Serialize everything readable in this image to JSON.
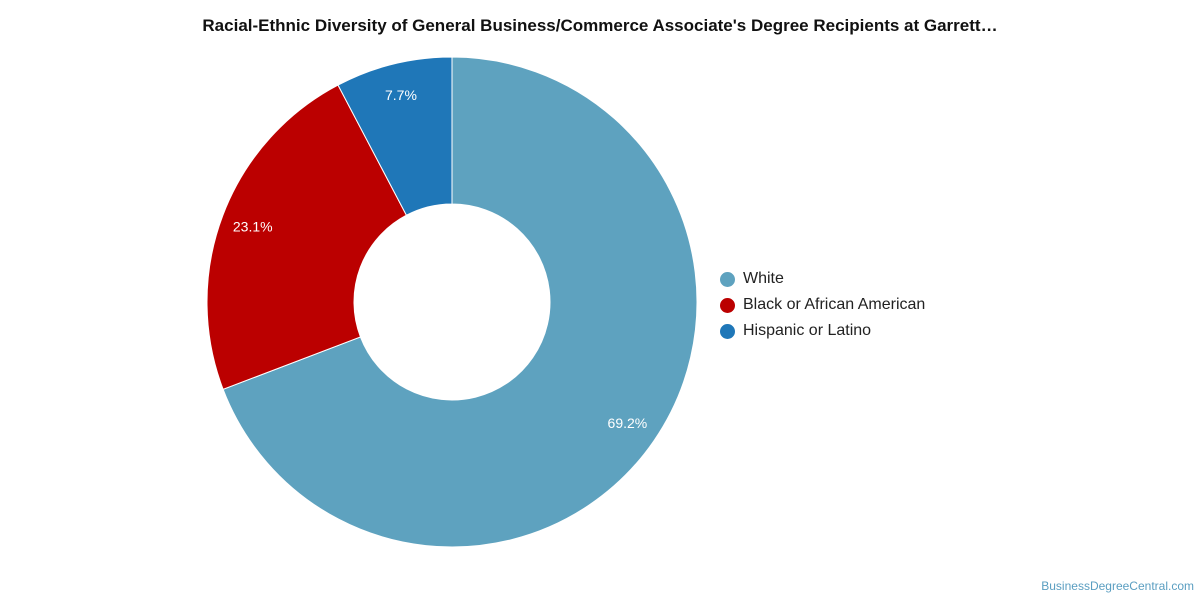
{
  "chart_data": {
    "type": "pie",
    "variant": "donut",
    "title": "Racial-Ethnic Diversity of General Business/Commerce Associate's Degree Recipients at Garrett…",
    "categories": [
      "White",
      "Black or African American",
      "Hispanic or Latino"
    ],
    "values": [
      69.2,
      23.1,
      7.7
    ],
    "labels": [
      "69.2%",
      "23.1%",
      "7.7%"
    ],
    "colors": [
      "#5ea2bf",
      "#bb0000",
      "#1f77b8"
    ],
    "legend_position": "right"
  },
  "footer": {
    "credit": "BusinessDegreeCentral.com"
  }
}
